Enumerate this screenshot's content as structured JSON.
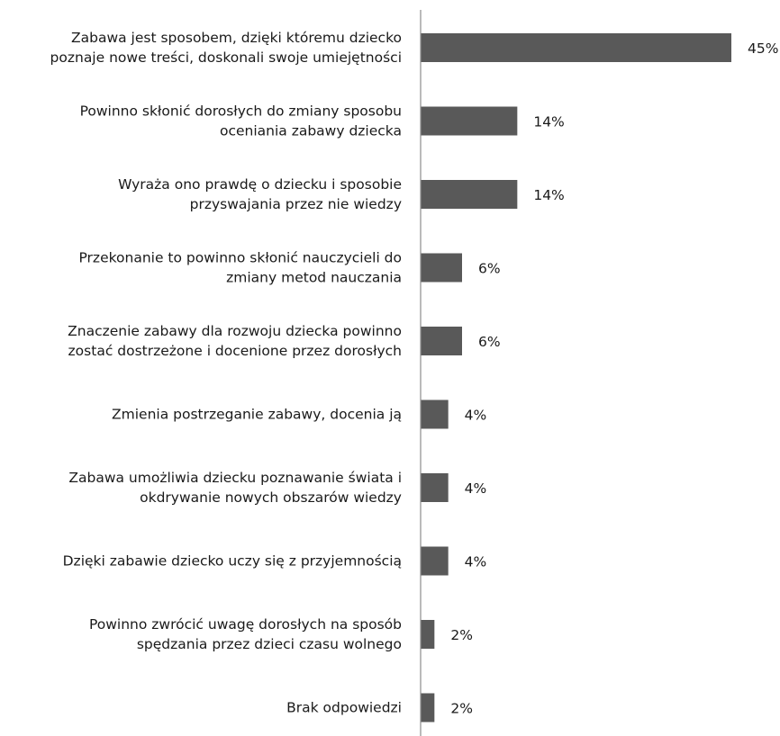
{
  "chart_data": {
    "type": "bar",
    "orientation": "horizontal",
    "categories": [
      [
        "Zabawa jest sposobem, dzięki któremu dziecko",
        "poznaje nowe treści, doskonali swoje umiejętności"
      ],
      [
        "Powinno skłonić dorosłych do zmiany sposobu",
        "oceniania zabawy dziecka"
      ],
      [
        "Wyraża ono prawdę o dziecku i sposobie",
        "przyswajania przez nie wiedzy"
      ],
      [
        "Przekonanie to powinno skłonić nauczycieli do",
        "zmiany metod nauczania"
      ],
      [
        "Znaczenie zabawy dla rozwoju dziecka powinno",
        "zostać dostrzeżone i docenione przez dorosłych"
      ],
      [
        "Zmienia postrzeganie zabawy, docenia ją"
      ],
      [
        "Zabawa umożliwia dziecku poznawanie świata i",
        "okdrywanie nowych obszarów wiedzy"
      ],
      [
        "Dzięki zabawie dziecko uczy się z przyjemnością"
      ],
      [
        "Powinno zwrócić uwagę dorosłych na sposób",
        "spędzania przez dzieci czasu wolnego"
      ],
      [
        "Brak odpowiedzi"
      ]
    ],
    "values": [
      45,
      14,
      14,
      6,
      6,
      4,
      4,
      4,
      2,
      2
    ],
    "value_labels": [
      "45%",
      "14%",
      "14%",
      "6%",
      "6%",
      "4%",
      "4%",
      "4%",
      "2%",
      "2%"
    ],
    "bar_color": "#595959",
    "axis_color": "#8c8c8c",
    "xlim": [
      0,
      45
    ],
    "grid": false,
    "legend": "none"
  }
}
